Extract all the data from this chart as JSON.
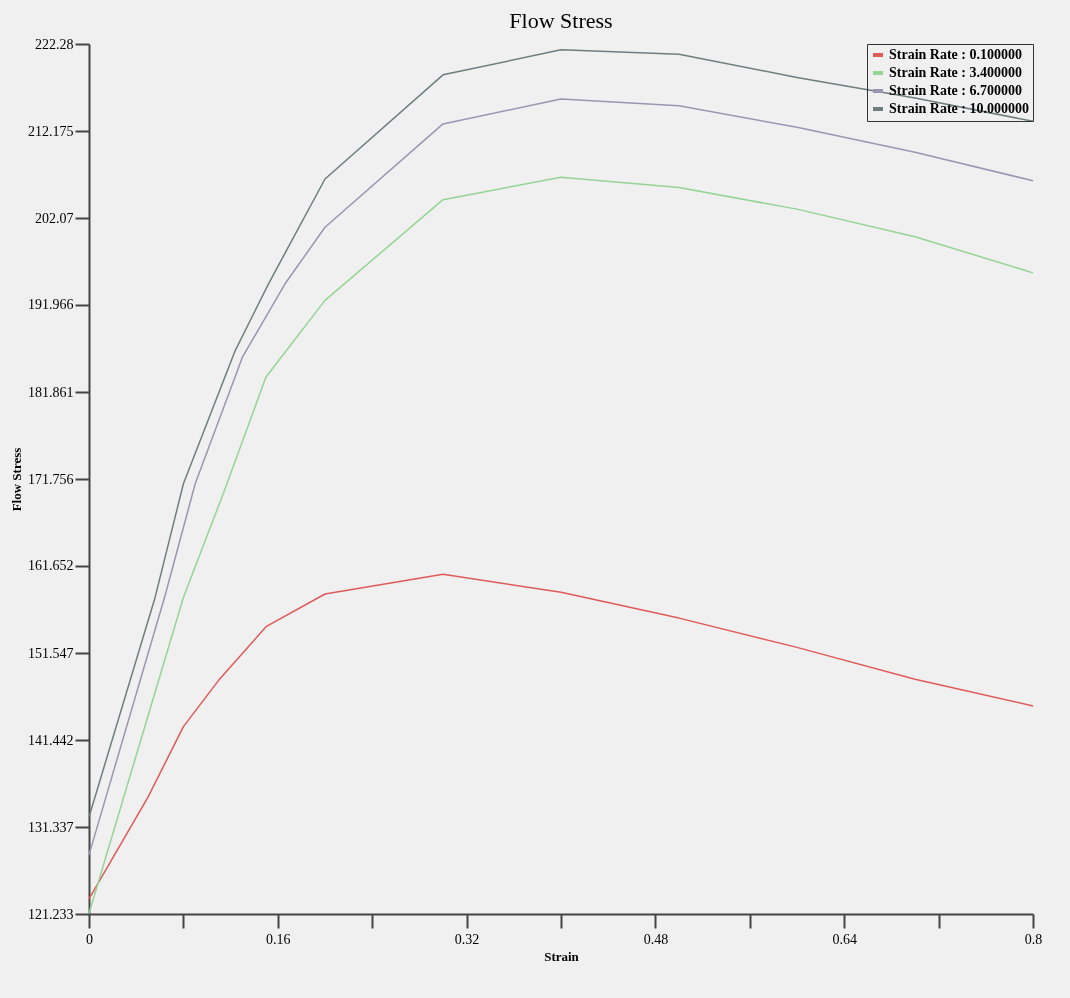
{
  "chart_data": {
    "type": "line",
    "title": "Flow Stress",
    "xlabel": "Strain",
    "ylabel": "Flow Stress",
    "xlim": [
      0,
      0.8
    ],
    "xticks": [
      0,
      {
        "value": 0.08,
        "label": null
      },
      0.16,
      {
        "value": 0.24,
        "label": null
      },
      0.32,
      {
        "value": 0.4,
        "label": null
      },
      0.48,
      {
        "value": 0.56,
        "label": null
      },
      0.64,
      {
        "value": 0.72,
        "label": null
      },
      0.8
    ],
    "ylim": [
      121.233,
      222.28
    ],
    "yticks": [
      121.233,
      131.337,
      141.442,
      151.547,
      161.652,
      171.756,
      181.861,
      191.966,
      202.07,
      212.175,
      222.28
    ],
    "grid": false,
    "legend": "top right",
    "marker": "none",
    "line_style": "solid",
    "series": [
      {
        "name": "Strain Rate : 0.100000",
        "color": "#e05a5a",
        "x": [
          0,
          0.05,
          0.08,
          0.11,
          0.15,
          0.2,
          0.3,
          0.4,
          0.5,
          0.6,
          0.7,
          0.8
        ],
        "values": [
          123.0,
          134.8,
          143.0,
          148.4,
          154.6,
          158.4,
          160.7,
          158.6,
          155.6,
          152.2,
          148.5,
          145.4
        ]
      },
      {
        "name": "Strain Rate : 3.400000",
        "color": "#94d494",
        "x": [
          0,
          0.08,
          0.115,
          0.15,
          0.2,
          0.3,
          0.4,
          0.5,
          0.6,
          0.7,
          0.8
        ],
        "values": [
          121.3,
          158.0,
          170.5,
          183.6,
          192.5,
          204.2,
          206.8,
          205.6,
          203.1,
          199.9,
          195.7
        ]
      },
      {
        "name": "Strain Rate : 6.700000",
        "color": "#9a96b0",
        "x": [
          0,
          0.064,
          0.09,
          0.13,
          0.166,
          0.2,
          0.3,
          0.4,
          0.5,
          0.6,
          0.7,
          0.8
        ],
        "values": [
          128.1,
          158.0,
          171.2,
          185.9,
          194.4,
          201.0,
          213.0,
          215.9,
          215.1,
          212.6,
          209.7,
          206.4
        ]
      },
      {
        "name": "Strain Rate : 10.000000",
        "color": "#6e7e7e",
        "x": [
          0,
          0.056,
          0.08,
          0.124,
          0.152,
          0.2,
          0.3,
          0.4,
          0.5,
          0.6,
          0.7,
          0.8
        ],
        "values": [
          132.5,
          158.0,
          171.2,
          186.7,
          194.4,
          206.6,
          218.7,
          221.6,
          221.1,
          218.4,
          216.0,
          213.3
        ]
      }
    ]
  }
}
